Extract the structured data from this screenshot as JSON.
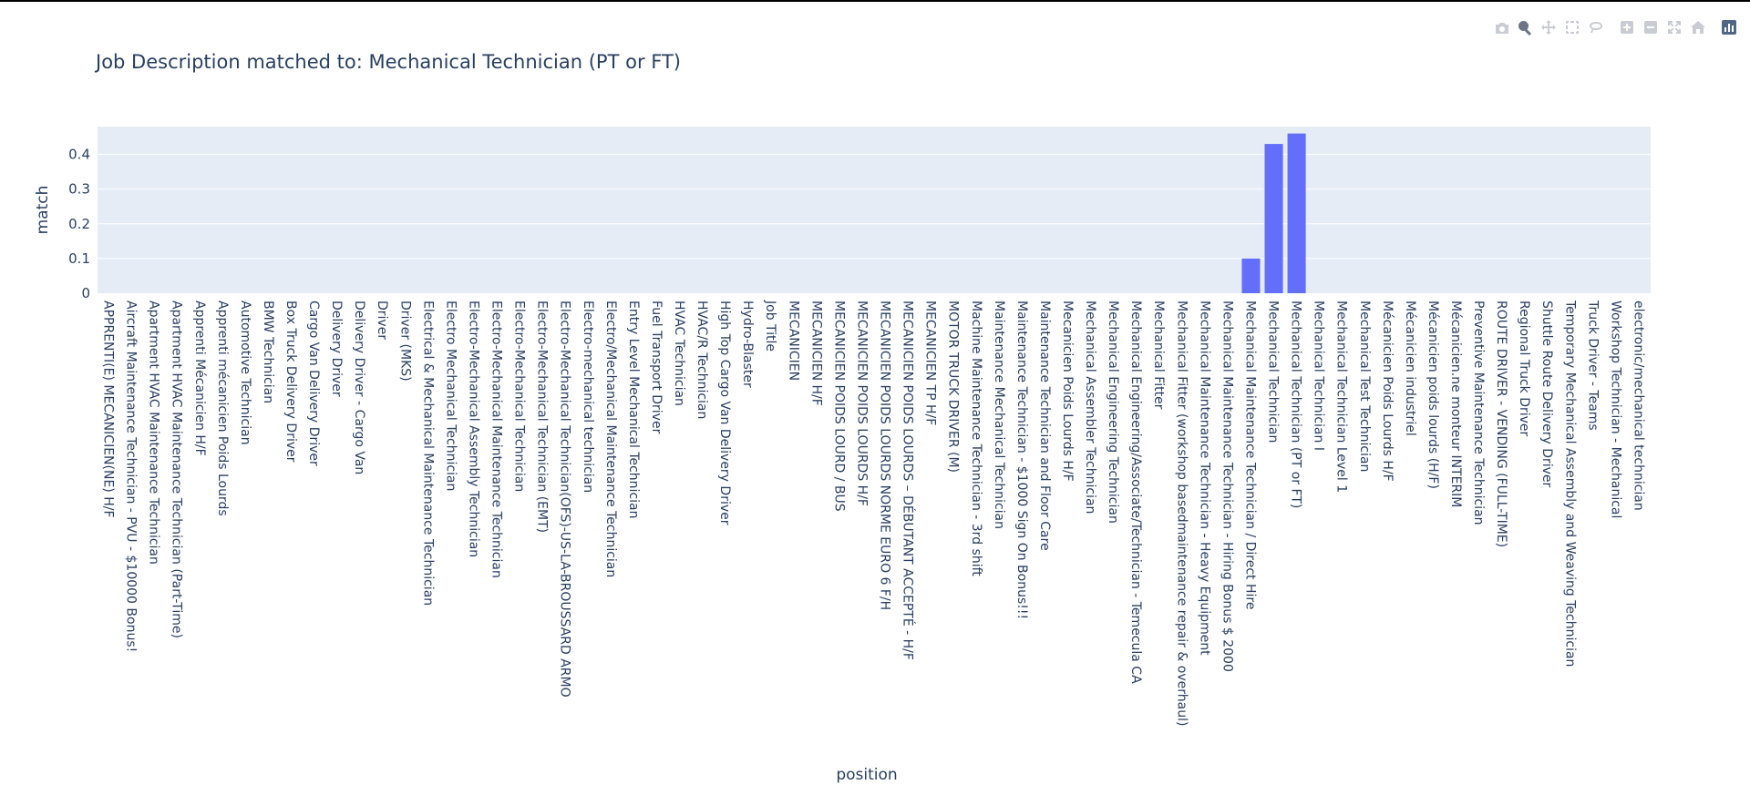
{
  "modebar": {
    "buttons": [
      {
        "name": "camera-icon",
        "title": "Download plot as a png",
        "group": 1
      },
      {
        "name": "zoom-icon",
        "title": "Zoom",
        "group": 1,
        "active": true
      },
      {
        "name": "pan-icon",
        "title": "Pan",
        "group": 1
      },
      {
        "name": "box-select-icon",
        "title": "Box Select",
        "group": 1
      },
      {
        "name": "lasso-select-icon",
        "title": "Lasso Select",
        "group": 1
      },
      {
        "name": "zoom-in-icon",
        "title": "Zoom in",
        "group": 2
      },
      {
        "name": "zoom-out-icon",
        "title": "Zoom out",
        "group": 2
      },
      {
        "name": "autoscale-icon",
        "title": "Autoscale",
        "group": 2
      },
      {
        "name": "reset-axes-icon",
        "title": "Reset axes",
        "group": 2
      },
      {
        "name": "plotly-logo-icon",
        "title": "Produced with Plotly",
        "group": 3
      }
    ]
  },
  "chart_data": {
    "type": "bar",
    "title": "Job Description matched to: Mechanical Technician (PT or FT)",
    "xlabel": "position",
    "ylabel": "match",
    "ylim": [
      0,
      0.48
    ],
    "yticks": [
      0,
      0.1,
      0.2,
      0.3,
      0.4
    ],
    "ytick_labels": [
      "0",
      "0.1",
      "0.2",
      "0.3",
      "0.4"
    ],
    "grid": true,
    "colors": {
      "bar": "#636efa",
      "plot_bg": "#e5ecf6",
      "grid": "#ffffff"
    },
    "categories": [
      "APPRENTI(E) MECANICIEN(NE) H/F",
      "Aircraft Maintenance Technician - PVU - $10000 Bonus!",
      "Apartment HVAC Maintenance Technician",
      "Apartment HVAC Maintenance Technician (Part-Time)",
      "Apprenti Mécanicien H/F",
      "Apprenti mécanicien Poids Lourds",
      "Automotive Technician",
      "BMW Technician",
      "Box Truck Delivery Driver",
      "Cargo Van Delivery Driver",
      "Delivery Driver",
      "Delivery Driver - Cargo Van",
      "Driver",
      "Driver (MKS)",
      "Electrical & Mechanical Maintenance Technician",
      "Electro Mechanical Technician",
      "Electro-Mechanical Assembly Technician",
      "Electro-Mechanical Maintenance Technician",
      "Electro-Mechanical Technician",
      "Electro-Mechanical Technician (EMT)",
      "Electro-Mechanical Technician(OFS)-US-LA-BROUSSARD ARMO",
      "Electro-mechanical technician",
      "Electro/Mechanical Maintenance Technician",
      "Entry Level Mechanical Technician",
      "Fuel Transport Driver",
      "HVAC Technician",
      "HVAC/R Technician",
      "High Top Cargo Van Delivery Driver",
      "Hydro-Blaster",
      "Job Title",
      "MECANICIEN",
      "MECANICIEN H/F",
      "MECANICIEN POIDS LOURD / BUS",
      "MECANICIEN POIDS LOURDS H/F",
      "MECANICIEN POIDS LOURDS NORME EURO 6 F/H",
      "MECANICIEN POIDS LOURDS – DÉBUTANT ACCEPTÉ - H/F",
      "MECANICIEN TP H/F",
      "MOTOR TRUCK DRIVER (M)",
      "Machine Maintenance Technician - 3rd shift",
      "Maintenance Mechanical Technician",
      "Maintenance Technician - $1000 Sign On Bonus!!!",
      "Maintenance Technician and Floor Care",
      "Mecanicien Poids Lourds H/F",
      "Mechanical Assembler Technician",
      "Mechanical Engineering Technician",
      "Mechanical Engineering/Associate/Technician - Temecula CA",
      "Mechanical Fitter",
      "Mechanical Fitter (workshop basedmaintenance repair & overhaul)",
      "Mechanical Maintenance Technician - Heavy Equipment",
      "Mechanical Maintenance Technician - Hiring Bonus $ 2000",
      "Mechanical Maintenance Technician / Direct Hire",
      "Mechanical Technician",
      "Mechanical Technician (PT or FT)",
      "Mechanical Technician I",
      "Mechanical Technician Level 1",
      "Mechanical Test Technician",
      "Mécanicien Poids Lourds H/F",
      "Mécanicien industriel",
      "Mécanicien poids lourds (H/F)",
      "Mécanicien.ne monteur INTERIM",
      "Preventive Maintenance Technician",
      "ROUTE DRIVER - VENDING (FULL-TIME)",
      "Regional Truck Driver",
      "Shuttle Route Delivery Driver",
      "Temporary Mechanical Assembly and Weaving Technician",
      "Truck Driver - Teams",
      "Workshop Technician - Mechanical",
      "electronic/mechanical technician"
    ],
    "values": [
      0,
      0,
      0,
      0,
      0,
      0,
      0,
      0,
      0,
      0,
      0,
      0,
      0,
      0,
      0,
      0,
      0,
      0,
      0,
      0,
      0,
      0,
      0,
      0,
      0,
      0,
      0,
      0,
      0,
      0,
      0,
      0,
      0,
      0,
      0,
      0,
      0,
      0,
      0,
      0,
      0,
      0,
      0,
      0,
      0,
      0,
      0,
      0,
      0,
      0,
      0.1,
      0.43,
      0.46,
      0,
      0,
      0,
      0,
      0,
      0,
      0,
      0,
      0,
      0,
      0,
      0,
      0,
      0,
      0
    ]
  }
}
